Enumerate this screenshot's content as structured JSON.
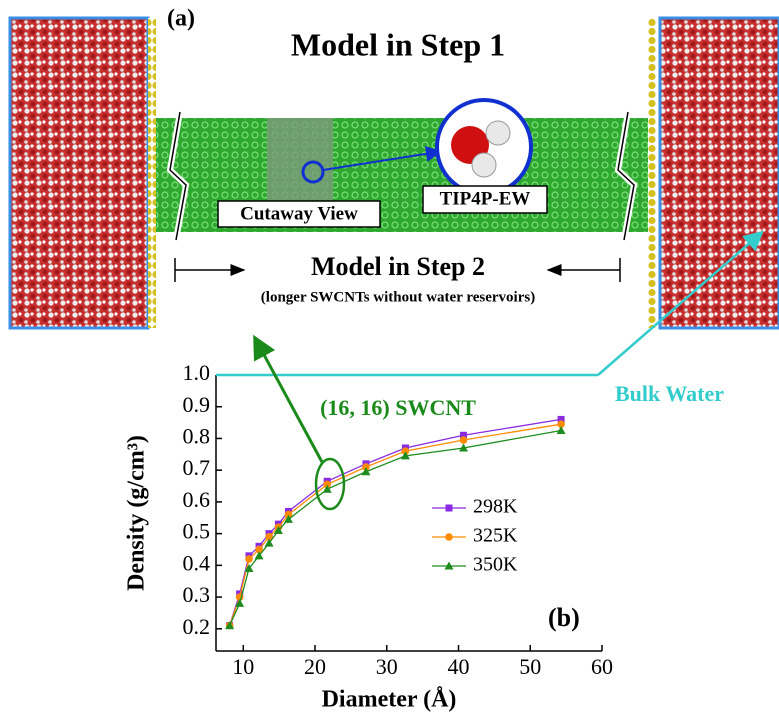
{
  "figure": {
    "panel_a_label": "(a)",
    "step1_title": "Model in Step 1",
    "cutaway_label": "Cutaway View",
    "water_model_label": "TIP4P-EW",
    "step2_title": "Model in Step 2",
    "step2_subtitle": "(longer SWCNTs without water reservoirs)"
  },
  "chart_data": {
    "type": "line",
    "x_label": "Diameter (Å)",
    "y_label": "Density (g/cm³)",
    "panel_label": "(b)",
    "tube_annotation": "(16, 16) SWCNT",
    "bulk_annotation": "Bulk Water",
    "bulk_value": 1.0,
    "bulk_color": "#33cccc",
    "tube_color": "#1a8a1a",
    "x": [
      8.1,
      9.5,
      10.8,
      12.2,
      13.6,
      14.9,
      16.3,
      21.7,
      27.1,
      32.6,
      40.7,
      54.3
    ],
    "series": [
      {
        "name": "298K",
        "color": "#8a2be2",
        "marker": "square",
        "values": [
          0.21,
          0.31,
          0.43,
          0.46,
          0.5,
          0.53,
          0.57,
          0.665,
          0.72,
          0.77,
          0.81,
          0.86
        ]
      },
      {
        "name": "325K",
        "color": "#ff8c00",
        "marker": "circle",
        "values": [
          0.21,
          0.3,
          0.42,
          0.45,
          0.49,
          0.52,
          0.56,
          0.655,
          0.71,
          0.76,
          0.795,
          0.845
        ]
      },
      {
        "name": "350K",
        "color": "#1e8c1e",
        "marker": "triangle",
        "values": [
          0.21,
          0.28,
          0.39,
          0.43,
          0.47,
          0.51,
          0.545,
          0.64,
          0.695,
          0.745,
          0.77,
          0.825
        ]
      }
    ],
    "xlim": [
      6.2,
      60
    ],
    "xticks": [
      10,
      20,
      30,
      40,
      50,
      60
    ],
    "ylim": [
      0.13,
      1.0
    ],
    "yticks": [
      0.2,
      0.3,
      0.4,
      0.5,
      0.6,
      0.7,
      0.8,
      0.9,
      {
        "value": 1,
        "label": "1.0"
      }
    ]
  }
}
